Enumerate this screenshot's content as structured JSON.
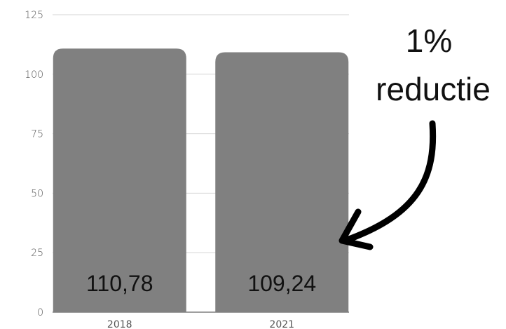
{
  "chart_data": {
    "type": "bar",
    "categories": [
      "2018",
      "2021"
    ],
    "values": [
      110.78,
      109.24
    ],
    "data_labels": [
      "110,78",
      "109,24"
    ],
    "ylim": [
      0,
      125
    ],
    "yticks": [
      0,
      25,
      50,
      75,
      100,
      125
    ],
    "grid": true,
    "legend": "none",
    "bar_color": "#808080",
    "annotation": {
      "lines": [
        "1%",
        "reductie"
      ]
    }
  }
}
